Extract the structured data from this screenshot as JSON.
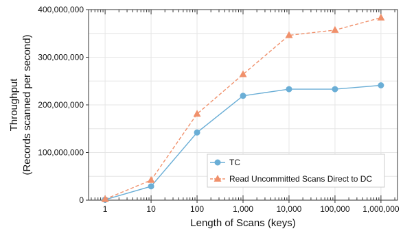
{
  "chart_data": {
    "type": "line",
    "xscale": "log",
    "x": [
      1,
      10,
      100,
      1000,
      10000,
      100000,
      1000000
    ],
    "xtick_labels": [
      "1",
      "10",
      "100",
      "1,000",
      "10,000",
      "100,000",
      "1,000,000"
    ],
    "xlabel": "Length of Scans (keys)",
    "ylabel_lines": [
      "Throughput",
      "(Records scanned per second)"
    ],
    "ylim": [
      0,
      400000000
    ],
    "yticks": [
      0,
      100000000,
      200000000,
      300000000,
      400000000
    ],
    "ytick_labels": [
      "0",
      "100,000,000",
      "200,000,000",
      "300,000,000",
      "400,000,000"
    ],
    "grid": true,
    "legend_position": "bottom-right",
    "series": [
      {
        "name": "TC",
        "color": "#6aaed6",
        "marker": "circle",
        "line_style": "solid",
        "values": [
          1000000,
          29000000,
          142000000,
          219000000,
          233000000,
          233000000,
          241000000
        ]
      },
      {
        "name": "Read Uncommitted Scans Direct to DC",
        "color": "#f0906b",
        "marker": "triangle",
        "line_style": "dashed",
        "values": [
          2000000,
          42000000,
          181000000,
          264000000,
          346000000,
          357000000,
          383000000
        ]
      }
    ]
  }
}
